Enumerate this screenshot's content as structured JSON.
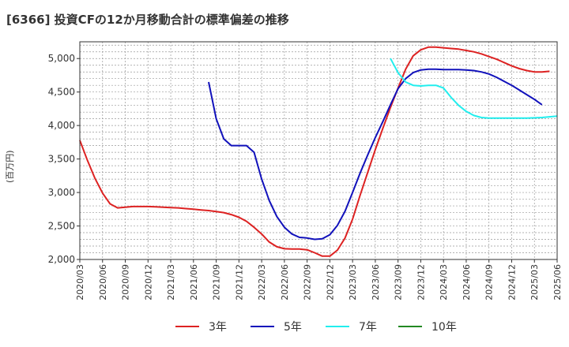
{
  "chart_data": {
    "type": "line",
    "title": "[6366]  投資CFの12か月移動合計の標準偏差の推移",
    "ylabel": "(百万円)",
    "xlabel": "",
    "x_ticks": [
      "2020/03",
      "2020/06",
      "2020/09",
      "2020/12",
      "2021/03",
      "2021/06",
      "2021/09",
      "2021/12",
      "2022/03",
      "2022/06",
      "2022/09",
      "2022/12",
      "2023/03",
      "2023/06",
      "2023/09",
      "2023/12",
      "2024/03",
      "2024/06",
      "2024/09",
      "2024/12",
      "2025/03",
      "2025/06"
    ],
    "y_ticks": [
      "2,000",
      "2,500",
      "3,000",
      "3,500",
      "4,000",
      "4,500",
      "5,000"
    ],
    "ylim": [
      2000,
      5250
    ],
    "grid": true,
    "legend_position": "bottom",
    "series": [
      {
        "name": "3年",
        "color": "#dd2222",
        "start": "2020/03",
        "values": [
          3780,
          3480,
          3210,
          2990,
          2830,
          2770,
          2780,
          2790,
          2790,
          2790,
          2785,
          2780,
          2775,
          2770,
          2760,
          2750,
          2740,
          2730,
          2715,
          2700,
          2670,
          2630,
          2570,
          2480,
          2380,
          2260,
          2190,
          2160,
          2155,
          2155,
          2145,
          2100,
          2050,
          2050,
          2140,
          2320,
          2600,
          2960,
          3300,
          3640,
          3960,
          4270,
          4560,
          4840,
          5040,
          5130,
          5170,
          5170,
          5160,
          5150,
          5140,
          5120,
          5100,
          5070,
          5030,
          4990,
          4940,
          4890,
          4850,
          4820,
          4800,
          4800,
          4810
        ]
      },
      {
        "name": "5年",
        "color": "#1111bb",
        "start": "2021/08",
        "values": [
          4650,
          4100,
          3800,
          3700,
          3700,
          3700,
          3600,
          3200,
          2880,
          2640,
          2480,
          2380,
          2330,
          2320,
          2300,
          2310,
          2370,
          2510,
          2720,
          3000,
          3290,
          3560,
          3820,
          4060,
          4310,
          4550,
          4700,
          4790,
          4830,
          4840,
          4840,
          4835,
          4835,
          4835,
          4830,
          4820,
          4800,
          4770,
          4720,
          4660,
          4600,
          4530,
          4460,
          4390,
          4310
        ]
      },
      {
        "name": "7年",
        "color": "#22eeee",
        "start": "2023/08",
        "values": [
          5000,
          4790,
          4650,
          4600,
          4590,
          4600,
          4600,
          4560,
          4420,
          4300,
          4210,
          4150,
          4120,
          4110,
          4110,
          4110,
          4110,
          4110,
          4110,
          4115,
          4120,
          4130,
          4140
        ]
      },
      {
        "name": "10年",
        "color": "#228822",
        "start": "2025/03",
        "values": []
      }
    ]
  }
}
